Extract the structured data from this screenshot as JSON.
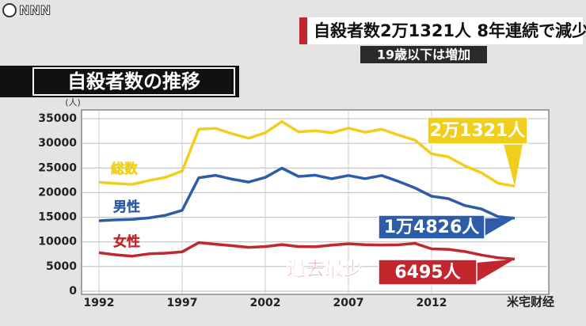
{
  "logo": "NNN",
  "headline": "自殺者数2万1321人 8年連続で減少",
  "subheadline": "19歳以下は増加",
  "watermark": "米宅财经",
  "chart_data": {
    "type": "line",
    "title": "自殺者数の推移",
    "y_label": "(人)",
    "annotation": "過去最少",
    "x": [
      1992,
      1993,
      1994,
      1995,
      1996,
      1997,
      1998,
      1999,
      2000,
      2001,
      2002,
      2003,
      2004,
      2005,
      2006,
      2007,
      2008,
      2009,
      2010,
      2011,
      2012,
      2013,
      2014,
      2015,
      2016,
      2017
    ],
    "xlim": [
      1991,
      2019
    ],
    "xticks": [
      1992,
      1997,
      2002,
      2007,
      2012
    ],
    "ylim": [
      0,
      35000
    ],
    "yticks": [
      0,
      5000,
      10000,
      15000,
      20000,
      25000,
      30000,
      35000
    ],
    "grid": true,
    "series": [
      {
        "name": "総数",
        "color": "#f0cf1c",
        "values": [
          22104,
          21851,
          21679,
          22445,
          23104,
          24391,
          32863,
          33048,
          31957,
          31042,
          32143,
          34427,
          32325,
          32552,
          32155,
          33093,
          32249,
          32845,
          31690,
          30651,
          27858,
          27283,
          25427,
          24025,
          21897,
          21321
        ],
        "value_labels": [
          null,
          null,
          null,
          null,
          null,
          null,
          null,
          null,
          null,
          null,
          null,
          null,
          null,
          null,
          null,
          null,
          null,
          null,
          null,
          null,
          null,
          null,
          null,
          null,
          null,
          "2万1321人"
        ]
      },
      {
        "name": "男性",
        "color": "#2d5ca8",
        "values": [
          14296,
          14468,
          14560,
          14874,
          15393,
          16416,
          23013,
          23512,
          22727,
          22144,
          23080,
          24963,
          23272,
          23540,
          22813,
          23478,
          22831,
          23472,
          22283,
          20955,
          19273,
          18787,
          17386,
          16681,
          15121,
          14826
        ],
        "value_labels": [
          null,
          null,
          null,
          null,
          null,
          null,
          null,
          null,
          null,
          null,
          null,
          null,
          null,
          null,
          null,
          null,
          null,
          null,
          null,
          null,
          null,
          null,
          null,
          null,
          null,
          "1万4826人"
        ]
      },
      {
        "name": "女性",
        "color": "#c1272d",
        "values": [
          7808,
          7383,
          7119,
          7571,
          7711,
          7975,
          9850,
          9536,
          9230,
          8898,
          9063,
          9464,
          9053,
          9012,
          9342,
          9615,
          9418,
          9373,
          9407,
          9696,
          8585,
          8496,
          8041,
          7344,
          6776,
          6495
        ],
        "value_labels": [
          null,
          null,
          null,
          null,
          null,
          null,
          null,
          null,
          null,
          null,
          null,
          null,
          null,
          null,
          null,
          null,
          null,
          null,
          null,
          null,
          null,
          null,
          null,
          null,
          null,
          "6495人"
        ]
      }
    ]
  }
}
